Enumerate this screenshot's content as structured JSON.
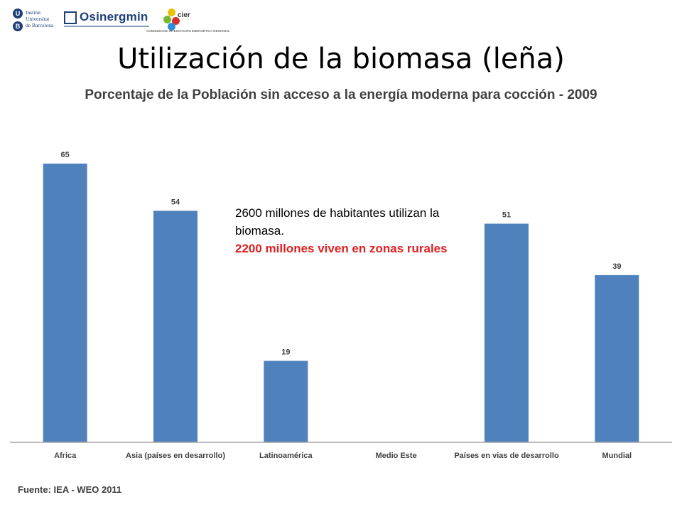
{
  "logos": {
    "ub": {
      "badge_letters": [
        "U",
        "B"
      ],
      "lines": [
        "Institut",
        "Universitat",
        "de Barcelona"
      ]
    },
    "osinergmin": {
      "name": "Osinergmin"
    },
    "cier": {
      "name": "cier",
      "subtitle": "COMISIÓN DE INTEGRACIÓN ENERGÉTICA REGIONAL",
      "colors": [
        "#e8c300",
        "#7bb82e",
        "#d92e2e",
        "#2e8fd9"
      ]
    }
  },
  "slide_title": "Utilización de la biomasa (leña)",
  "chart_data": {
    "type": "bar",
    "title": "Porcentaje de la Población sin acceso a la energía moderna para cocción - 2009",
    "categories": [
      "Africa",
      "Asia  (países en desarrollo)",
      "Latinoamérica",
      "Medio Este",
      "Países en vias de desarrollo",
      "Mundial"
    ],
    "values": [
      65,
      54,
      19,
      null,
      51,
      39
    ],
    "data_labels": [
      "65",
      "54",
      "19",
      "",
      "51",
      "39"
    ],
    "ylim": [
      0,
      70
    ],
    "bar_color": "#4f81bd",
    "grid": false,
    "legend": "none"
  },
  "callout": {
    "line1": "2600 millones de habitantes utilizan la biomasa.",
    "line2": "2200 millones viven en zonas rurales"
  },
  "source": "Fuente: IEA - WEO 2011"
}
